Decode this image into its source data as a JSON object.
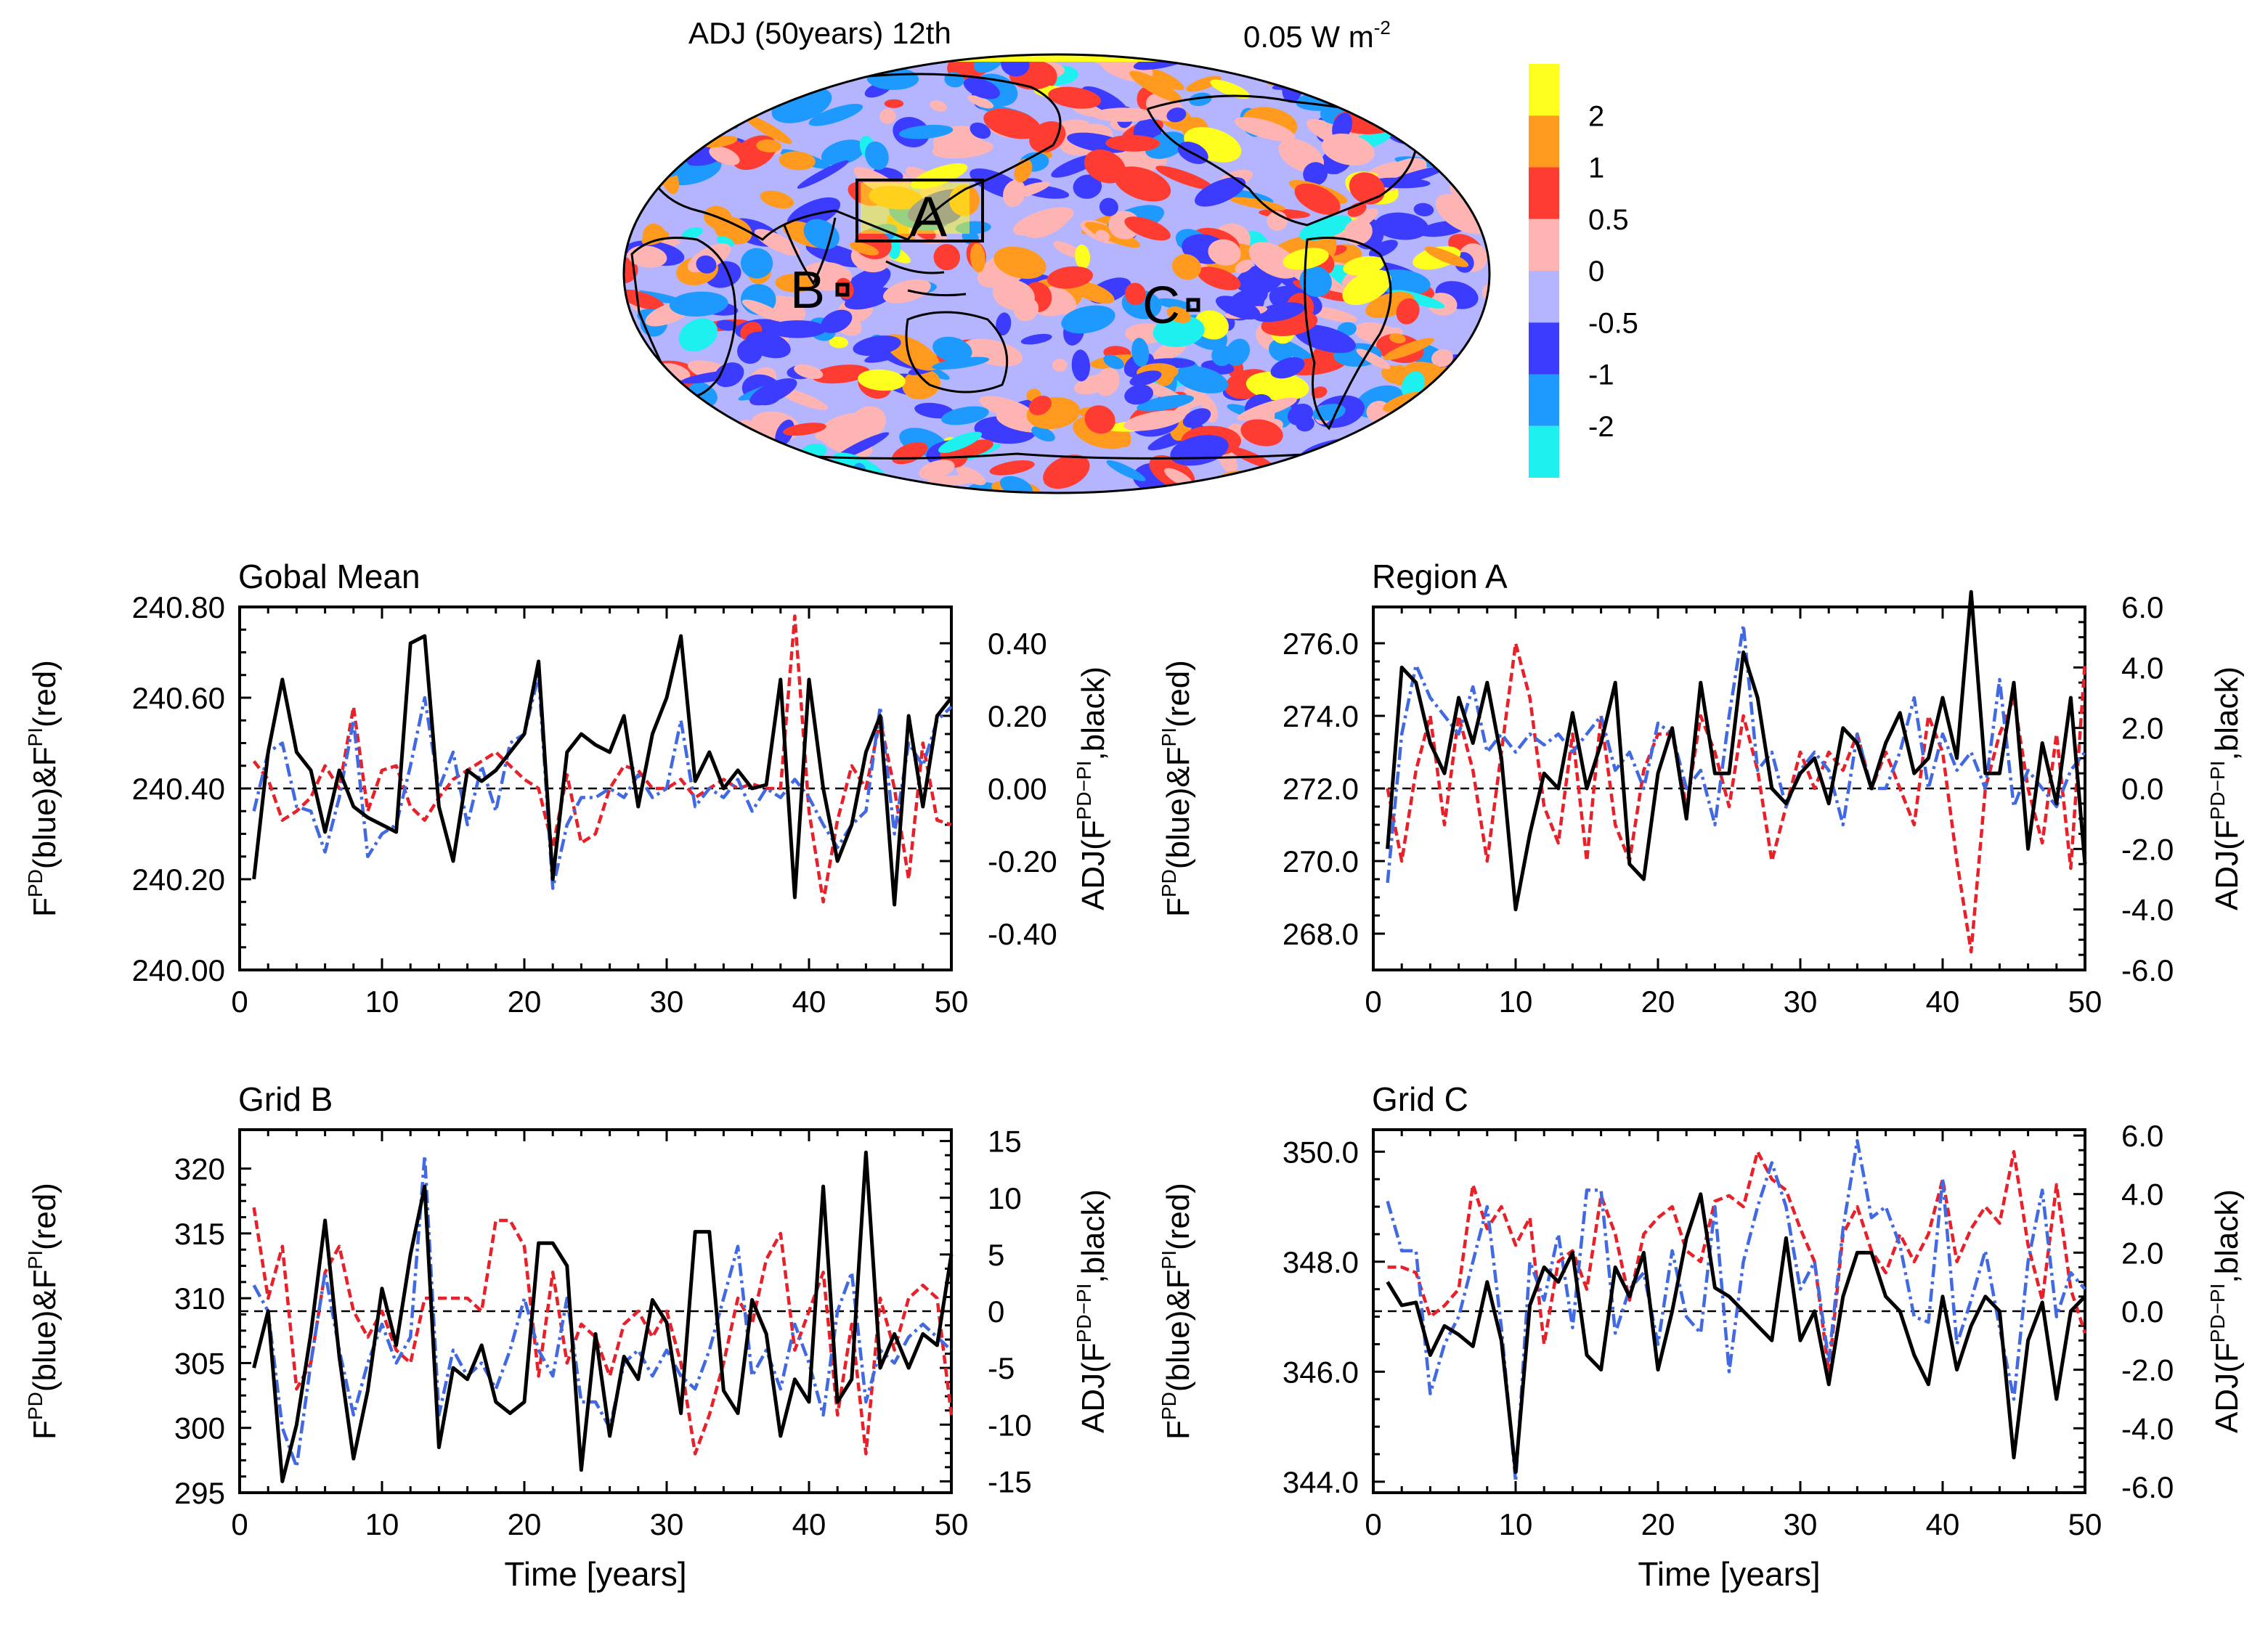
{
  "map": {
    "title": "ADJ (50years) 12th",
    "unit_value": "0.05 W m",
    "unit_sup": "-2",
    "region_labels": {
      "A": "A",
      "B": "B",
      "C": "C"
    },
    "colorbar": {
      "labels": [
        "2",
        "1",
        "0.5",
        "0",
        "-0.5",
        "-1",
        "-2"
      ],
      "colors": [
        "#ffff1e",
        "#ff9a1e",
        "#ff3c32",
        "#ffb4b4",
        "#b4b4ff",
        "#3c3cff",
        "#1e9aff",
        "#1ef0f0"
      ]
    },
    "colors": {
      "coast": "#000000",
      "ocean_base": "#b4b4ff"
    }
  },
  "series_colors": {
    "pd": "#4169e1",
    "pi": "#e8202a",
    "adj": "#000000"
  },
  "chart_data": [
    {
      "type": "line",
      "title": "Gobal Mean",
      "xlabel": "",
      "ylabel_left": {
        "main": "F",
        "sup1": "PD",
        "mid": "(blue)&F",
        "sup2": "PI",
        "end": "(red)"
      },
      "ylabel_right": {
        "main": "ADJ(F",
        "sup": "PD−PI",
        "end": ",black)"
      },
      "xlim": [
        0,
        50
      ],
      "xticks": [
        "0",
        "10",
        "20",
        "30",
        "40",
        "50"
      ],
      "ylim_left": [
        240.0,
        240.8
      ],
      "yticks_left": [
        "240.00",
        "240.20",
        "240.40",
        "240.60",
        "240.80"
      ],
      "ylim_right": [
        -0.5,
        0.5
      ],
      "yticks_right": [
        "-0.40",
        "-0.20",
        "0.00",
        "0.20",
        "0.40"
      ],
      "zero_line": 0,
      "x": [
        1,
        2,
        3,
        4,
        5,
        6,
        7,
        8,
        9,
        10,
        11,
        12,
        13,
        14,
        15,
        16,
        17,
        18,
        19,
        20,
        21,
        22,
        23,
        24,
        25,
        26,
        27,
        28,
        29,
        30,
        31,
        32,
        33,
        34,
        35,
        36,
        37,
        38,
        39,
        40,
        41,
        42,
        43,
        44,
        45,
        46,
        47,
        48,
        49,
        50
      ],
      "series": [
        {
          "key": "pd",
          "axis": "left",
          "dash": "18,6,4,6",
          "values": [
            240.35,
            240.48,
            240.5,
            240.36,
            240.35,
            240.26,
            240.38,
            240.55,
            240.25,
            240.3,
            240.32,
            240.45,
            240.6,
            240.4,
            240.48,
            240.32,
            240.45,
            240.35,
            240.5,
            240.52,
            240.65,
            240.18,
            240.32,
            240.38,
            240.38,
            240.4,
            240.38,
            240.43,
            240.38,
            240.4,
            240.55,
            240.36,
            240.4,
            240.38,
            240.42,
            240.35,
            240.4,
            240.38,
            240.42,
            240.38,
            240.32,
            240.27,
            240.32,
            240.35,
            240.58,
            240.3,
            240.5,
            240.45,
            240.55,
            240.58
          ]
        },
        {
          "key": "pi",
          "axis": "left",
          "dash": "12,6",
          "values": [
            240.46,
            240.42,
            240.33,
            240.35,
            240.38,
            240.45,
            240.4,
            240.58,
            240.35,
            240.44,
            240.45,
            240.36,
            240.33,
            240.38,
            240.42,
            240.44,
            240.46,
            240.48,
            240.45,
            240.42,
            240.4,
            240.27,
            240.43,
            240.28,
            240.3,
            240.4,
            240.45,
            240.44,
            240.4,
            240.4,
            240.42,
            240.38,
            240.4,
            240.42,
            240.4,
            240.41,
            240.4,
            240.4,
            240.78,
            240.35,
            240.15,
            240.33,
            240.45,
            240.4,
            240.55,
            240.4,
            240.2,
            240.5,
            240.33,
            240.32
          ]
        },
        {
          "key": "adj",
          "axis": "right",
          "dash": "",
          "values": [
            -0.25,
            0.1,
            0.3,
            0.1,
            0.05,
            -0.12,
            0.05,
            -0.05,
            -0.08,
            -0.1,
            -0.12,
            0.4,
            0.42,
            -0.05,
            -0.2,
            0.05,
            0.02,
            0.05,
            0.1,
            0.15,
            0.35,
            -0.25,
            0.1,
            0.15,
            0.12,
            0.1,
            0.2,
            -0.05,
            0.15,
            0.25,
            0.42,
            0.02,
            0.1,
            0.0,
            0.05,
            0.0,
            0.01,
            0.3,
            -0.3,
            0.3,
            0.0,
            -0.2,
            -0.1,
            0.1,
            0.2,
            -0.32,
            0.2,
            -0.05,
            0.2,
            0.25
          ]
        }
      ]
    },
    {
      "type": "line",
      "title": "Region A",
      "xlabel": "",
      "ylabel_left": {
        "main": "F",
        "sup1": "PD",
        "mid": "(blue)&F",
        "sup2": "PI",
        "end": "(red)"
      },
      "ylabel_right": {
        "main": "ADJ(F",
        "sup": "PD−PI",
        "end": ",black)"
      },
      "xlim": [
        0,
        50
      ],
      "xticks": [
        "0",
        "10",
        "20",
        "30",
        "40",
        "50"
      ],
      "ylim_left": [
        267.0,
        277.0
      ],
      "yticks_left": [
        "268.0",
        "270.0",
        "272.0",
        "274.0",
        "276.0"
      ],
      "ylim_right": [
        -6.0,
        6.0
      ],
      "yticks_right": [
        "-6.0",
        "-4.0",
        "-2.0",
        "0.0",
        "2.0",
        "4.0",
        "6.0"
      ],
      "zero_line": 0,
      "x": [
        1,
        2,
        3,
        4,
        5,
        6,
        7,
        8,
        9,
        10,
        11,
        12,
        13,
        14,
        15,
        16,
        17,
        18,
        19,
        20,
        21,
        22,
        23,
        24,
        25,
        26,
        27,
        28,
        29,
        30,
        31,
        32,
        33,
        34,
        35,
        36,
        37,
        38,
        39,
        40,
        41,
        42,
        43,
        44,
        45,
        46,
        47,
        48,
        49,
        50
      ],
      "series": [
        {
          "key": "pd",
          "axis": "left",
          "dash": "18,6,4,6",
          "values": [
            269.4,
            273.5,
            275.4,
            274.5,
            274.0,
            273.5,
            274.8,
            273.0,
            273.5,
            273.0,
            273.5,
            273.2,
            273.5,
            273.0,
            273.5,
            274.0,
            272.5,
            273.0,
            272.0,
            273.8,
            273.5,
            272.0,
            272.5,
            271.0,
            274.0,
            276.5,
            272.5,
            273.0,
            271.5,
            272.5,
            273.0,
            272.5,
            271.0,
            273.5,
            272.0,
            272.0,
            273.0,
            274.5,
            272.0,
            273.5,
            272.5,
            273.0,
            272.0,
            275.0,
            271.5,
            272.5,
            272.0,
            271.5,
            272.5,
            273.0
          ]
        },
        {
          "key": "pi",
          "axis": "left",
          "dash": "12,6",
          "values": [
            272.0,
            270.0,
            272.5,
            274.0,
            271.0,
            274.0,
            272.5,
            270.0,
            273.0,
            276.0,
            274.5,
            271.5,
            270.5,
            273.5,
            270.0,
            274.0,
            271.0,
            270.0,
            272.5,
            273.5,
            273.5,
            271.5,
            274.0,
            273.0,
            271.5,
            274.0,
            272.5,
            270.0,
            271.5,
            273.0,
            272.0,
            273.0,
            272.5,
            273.5,
            272.0,
            273.0,
            272.0,
            271.0,
            274.0,
            273.0,
            270.0,
            267.5,
            272.0,
            273.5,
            274.5,
            272.0,
            270.5,
            273.5,
            269.8,
            275.5
          ]
        },
        {
          "key": "adj",
          "axis": "right",
          "dash": "",
          "values": [
            -2.0,
            4.0,
            3.5,
            1.5,
            0.5,
            3.0,
            1.5,
            3.5,
            1.0,
            -4.0,
            -1.5,
            0.5,
            0.0,
            2.5,
            0.0,
            1.5,
            3.5,
            -2.5,
            -3.0,
            0.5,
            2.0,
            -1.0,
            3.5,
            0.5,
            0.5,
            4.5,
            3.0,
            0.0,
            -0.5,
            0.5,
            1.0,
            -0.5,
            2.0,
            1.5,
            0.0,
            1.5,
            2.5,
            0.5,
            1.0,
            3.0,
            1.0,
            6.5,
            0.5,
            0.5,
            3.5,
            -2.0,
            1.5,
            -0.5,
            3.0,
            -2.5
          ]
        }
      ]
    },
    {
      "type": "line",
      "title": "Grid B",
      "xlabel": "Time [years]",
      "ylabel_left": {
        "main": "F",
        "sup1": "PD",
        "mid": "(blue)&F",
        "sup2": "PI",
        "end": "(red)"
      },
      "ylabel_right": {
        "main": "ADJ(F",
        "sup": "PD−PI",
        "end": ",black)"
      },
      "xlim": [
        0,
        50
      ],
      "xticks": [
        "0",
        "10",
        "20",
        "30",
        "40",
        "50"
      ],
      "ylim_left": [
        295,
        323
      ],
      "yticks_left": [
        "295",
        "300",
        "305",
        "310",
        "315",
        "320"
      ],
      "ylim_right": [
        -16,
        16
      ],
      "yticks_right": [
        "-15",
        "-10",
        "-5",
        "0",
        "5",
        "10",
        "15"
      ],
      "zero_line": 0,
      "x": [
        1,
        2,
        3,
        4,
        5,
        6,
        7,
        8,
        9,
        10,
        11,
        12,
        13,
        14,
        15,
        16,
        17,
        18,
        19,
        20,
        21,
        22,
        23,
        24,
        25,
        26,
        27,
        28,
        29,
        30,
        31,
        32,
        33,
        34,
        35,
        36,
        37,
        38,
        39,
        40,
        41,
        42,
        43,
        44,
        45,
        46,
        47,
        48,
        49,
        50
      ],
      "series": [
        {
          "key": "pd",
          "axis": "left",
          "dash": "18,6,4,6",
          "values": [
            311,
            309,
            300,
            297,
            305,
            312,
            306,
            301,
            305,
            308,
            305,
            307,
            321,
            301,
            306,
            304,
            305,
            303,
            306,
            310,
            306,
            304,
            310,
            302,
            302,
            300,
            305,
            306,
            304,
            306,
            304,
            303,
            306,
            310,
            314,
            304,
            306,
            303,
            308,
            305,
            301,
            309,
            312,
            302,
            306,
            305,
            307,
            308,
            307,
            306
          ]
        },
        {
          "key": "pi",
          "axis": "left",
          "dash": "12,6",
          "values": [
            317,
            310,
            314,
            303,
            305,
            312,
            314,
            309,
            307,
            309,
            306,
            305,
            310,
            310,
            310,
            310,
            309,
            316,
            316,
            314,
            304,
            312,
            305,
            308,
            307,
            304,
            308,
            309,
            307,
            309,
            305,
            298,
            301,
            305,
            310,
            308,
            313,
            315,
            306,
            309,
            312,
            301,
            308,
            298,
            310,
            306,
            310,
            311,
            310,
            301
          ]
        },
        {
          "key": "adj",
          "axis": "right",
          "dash": "",
          "values": [
            -5,
            0,
            -15,
            -10,
            -2,
            8,
            -4,
            -13,
            -7,
            2,
            -3,
            5,
            11,
            -12,
            -5,
            -6,
            -3,
            -8,
            -9,
            -8,
            6,
            6,
            4,
            -14,
            -2,
            -11,
            -4,
            -6,
            1,
            -1,
            -9,
            7,
            7,
            -7,
            -9,
            1,
            -2,
            -11,
            -6,
            -8,
            11,
            -8,
            -6,
            14,
            -5,
            -2,
            -5,
            -2,
            -3,
            5
          ]
        }
      ]
    },
    {
      "type": "line",
      "title": "Grid C",
      "xlabel": "Time [years]",
      "ylabel_left": {
        "main": "F",
        "sup1": "PD",
        "mid": "(blue)&F",
        "sup2": "PI",
        "end": "(red)"
      },
      "ylabel_right": {
        "main": "ADJ(F",
        "sup": "PD−PI",
        "end": ",black)"
      },
      "xlim": [
        0,
        50
      ],
      "xticks": [
        "0",
        "10",
        "20",
        "30",
        "40",
        "50"
      ],
      "ylim_left": [
        343.8,
        350.4
      ],
      "yticks_left": [
        "344.0",
        "346.0",
        "348.0",
        "350.0"
      ],
      "ylim_right": [
        -6.2,
        6.2
      ],
      "yticks_right": [
        "-6.0",
        "-4.0",
        "-2.0",
        "0.0",
        "2.0",
        "4.0",
        "6.0"
      ],
      "zero_line": 0,
      "x": [
        1,
        2,
        3,
        4,
        5,
        6,
        7,
        8,
        9,
        10,
        11,
        12,
        13,
        14,
        15,
        16,
        17,
        18,
        19,
        20,
        21,
        22,
        23,
        24,
        25,
        26,
        27,
        28,
        29,
        30,
        31,
        32,
        33,
        34,
        35,
        36,
        37,
        38,
        39,
        40,
        41,
        42,
        43,
        44,
        45,
        46,
        47,
        48,
        49,
        50
      ],
      "series": [
        {
          "key": "pd",
          "axis": "left",
          "dash": "18,6,4,6",
          "values": [
            349.1,
            348.2,
            348.2,
            345.6,
            346.5,
            347.0,
            348.0,
            349.0,
            346.8,
            344.0,
            348.0,
            347.3,
            348.5,
            346.8,
            349.3,
            349.3,
            346.7,
            347.5,
            347.8,
            346.5,
            348.2,
            347.0,
            346.7,
            349.0,
            346.0,
            348.0,
            349.0,
            349.8,
            349.0,
            347.5,
            348.0,
            346.2,
            348.6,
            350.2,
            348.8,
            349.0,
            348.3,
            347.0,
            346.9,
            349.5,
            346.5,
            347.3,
            348.2,
            346.8,
            345.5,
            348.0,
            349.3,
            347.0,
            347.8,
            347.5
          ]
        },
        {
          "key": "pi",
          "axis": "left",
          "dash": "12,6",
          "values": [
            347.9,
            347.9,
            347.8,
            347.0,
            347.2,
            347.5,
            349.4,
            348.6,
            349.0,
            348.3,
            348.8,
            346.5,
            348.0,
            348.2,
            347.5,
            349.2,
            348.5,
            347.3,
            348.5,
            348.8,
            349.0,
            348.2,
            348.0,
            349.1,
            349.2,
            349.0,
            350.0,
            349.5,
            349.3,
            348.6,
            348.0,
            346.0,
            348.5,
            349.0,
            348.2,
            347.8,
            348.5,
            348.0,
            348.5,
            349.5,
            348.0,
            348.6,
            349.0,
            348.7,
            350.0,
            348.3,
            347.3,
            349.4,
            347.5,
            346.7
          ]
        },
        {
          "key": "adj",
          "axis": "right",
          "dash": "",
          "values": [
            1.0,
            0.2,
            0.3,
            -1.5,
            -0.5,
            -0.8,
            -1.2,
            1.0,
            -1.0,
            -5.5,
            0.2,
            1.5,
            1.0,
            2.0,
            -1.5,
            -2.0,
            1.5,
            0.5,
            2.0,
            -2.0,
            0.0,
            2.5,
            4.0,
            0.8,
            0.5,
            0.0,
            -0.5,
            -1.0,
            2.5,
            -1.0,
            0.0,
            -2.5,
            0.5,
            2.0,
            2.0,
            0.5,
            0.0,
            -1.5,
            -2.5,
            0.5,
            -2.0,
            -0.5,
            0.5,
            0.0,
            -5.0,
            -1.0,
            0.3,
            -3.0,
            0.0,
            0.5
          ]
        }
      ]
    }
  ]
}
